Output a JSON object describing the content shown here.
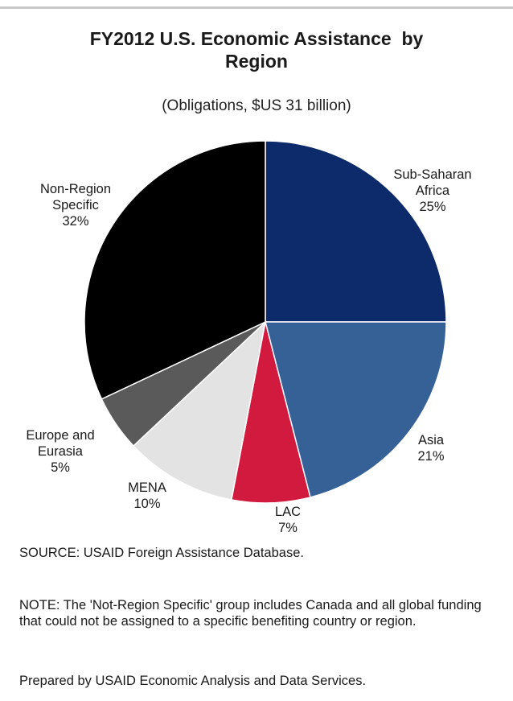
{
  "title_line1": "FY2012 U.S. Economic Assistance  by",
  "title_line2": "Region",
  "subtitle": "(Obligations, $US 31 billion)",
  "source": "SOURCE:  USAID Foreign Assistance Database.",
  "note": "NOTE:  The 'Not-Region Specific' group includes Canada and all global funding that could not be assigned to a specific benefiting country or region.",
  "prepared": "Prepared by USAID  Economic Analysis and Data Services.",
  "chart_data": {
    "type": "pie",
    "title": "FY2012 U.S. Economic Assistance  by Region",
    "subtitle": "(Obligations, $US 31 billion)",
    "unit": "%",
    "slices": [
      {
        "label_lines": [
          "Sub-Saharan",
          "Africa"
        ],
        "value": 25,
        "value_label": "25%",
        "color": "#0d2b6b"
      },
      {
        "label_lines": [
          "Asia"
        ],
        "value": 21,
        "value_label": "21%",
        "color": "#356197"
      },
      {
        "label_lines": [
          "LAC"
        ],
        "value": 7,
        "value_label": "7%",
        "color": "#d11a3d"
      },
      {
        "label_lines": [
          "MENA"
        ],
        "value": 10,
        "value_label": "10%",
        "color": "#e3e3e3"
      },
      {
        "label_lines": [
          "Europe and",
          "Eurasia"
        ],
        "value": 5,
        "value_label": "5%",
        "color": "#5a5a5a"
      },
      {
        "label_lines": [
          "Non-Region",
          "Specific"
        ],
        "value": 32,
        "value_label": "32%",
        "color": "#000000"
      }
    ]
  }
}
